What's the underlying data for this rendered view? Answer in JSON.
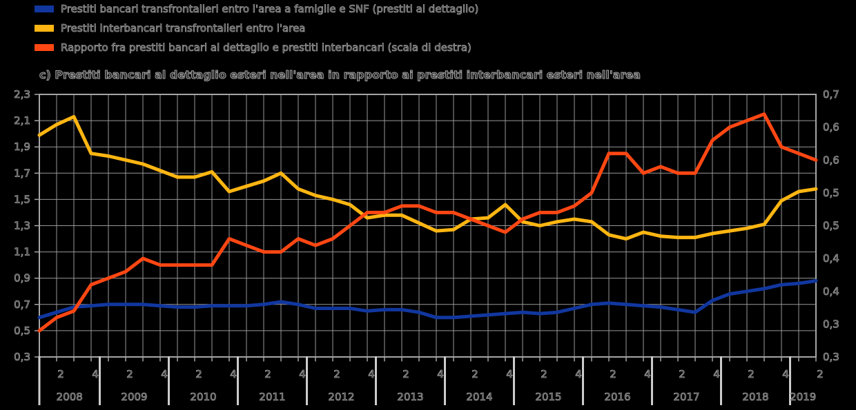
{
  "legend": {
    "items": [
      {
        "label": "Prestiti bancari transfrontalieri entro l'area a famiglie e SNF (prestiti al dettaglio)",
        "color": "#11379F"
      },
      {
        "label": "Prestiti interbancari transfrontalieri entro l'area",
        "color": "#FFB612"
      },
      {
        "label": "Rapporto fra prestiti bancari al dettaglio e prestiti interbancari (scala di destra)",
        "color": "#FF4713"
      }
    ]
  },
  "chart_data": {
    "type": "line",
    "title": "c) Prestiti bancari al dettaglio esteri nell'area in rapporto ai prestiti interbancari esteri nell'area",
    "xlabel": "",
    "ylabel": "",
    "grid": true,
    "legend_position": "top-left",
    "x": [
      "2008Q1",
      "2008Q2",
      "2008Q3",
      "2008Q4",
      "2009Q1",
      "2009Q2",
      "2009Q3",
      "2009Q4",
      "2010Q1",
      "2010Q2",
      "2010Q3",
      "2010Q4",
      "2011Q1",
      "2011Q2",
      "2011Q3",
      "2011Q4",
      "2012Q1",
      "2012Q2",
      "2012Q3",
      "2012Q4",
      "2013Q1",
      "2013Q2",
      "2013Q3",
      "2013Q4",
      "2014Q1",
      "2014Q2",
      "2014Q3",
      "2014Q4",
      "2015Q1",
      "2015Q2",
      "2015Q3",
      "2015Q4",
      "2016Q1",
      "2016Q2",
      "2016Q3",
      "2016Q4",
      "2017Q1",
      "2017Q2",
      "2017Q3",
      "2017Q4",
      "2018Q1",
      "2018Q2",
      "2018Q3",
      "2018Q4",
      "2019Q1",
      "2019Q2"
    ],
    "series": [
      {
        "name": "Prestiti bancari transfrontalieri entro l'area a famiglie e SNF (prestiti al dettaglio)",
        "axis": "left",
        "color": "#11379F",
        "values": [
          0.6,
          0.64,
          0.68,
          0.69,
          0.7,
          0.7,
          0.7,
          0.69,
          0.68,
          0.68,
          0.69,
          0.69,
          0.69,
          0.7,
          0.72,
          0.7,
          0.67,
          0.67,
          0.67,
          0.65,
          0.66,
          0.66,
          0.64,
          0.6,
          0.6,
          0.61,
          0.62,
          0.63,
          0.64,
          0.63,
          0.64,
          0.67,
          0.7,
          0.71,
          0.7,
          0.69,
          0.68,
          0.66,
          0.64,
          0.73,
          0.78,
          0.8,
          0.82,
          0.85,
          0.86,
          0.88
        ]
      },
      {
        "name": "Prestiti interbancari transfrontalieri entro l'area",
        "axis": "left",
        "color": "#FFB612",
        "values": [
          1.99,
          2.07,
          2.13,
          1.85,
          1.83,
          1.8,
          1.77,
          1.72,
          1.67,
          1.67,
          1.71,
          1.56,
          1.6,
          1.64,
          1.7,
          1.58,
          1.53,
          1.5,
          1.46,
          1.36,
          1.38,
          1.38,
          1.32,
          1.26,
          1.27,
          1.35,
          1.36,
          1.46,
          1.33,
          1.3,
          1.33,
          1.35,
          1.33,
          1.23,
          1.2,
          1.25,
          1.22,
          1.21,
          1.21,
          1.24,
          1.26,
          1.28,
          1.31,
          1.49,
          1.56,
          1.58
        ]
      },
      {
        "name": "Rapporto fra prestiti bancari al dettaglio e prestiti interbancari (scala di destra)",
        "axis": "right",
        "color": "#FF4713",
        "values": [
          0.34,
          0.36,
          0.37,
          0.41,
          0.42,
          0.43,
          0.45,
          0.44,
          0.44,
          0.44,
          0.44,
          0.48,
          0.47,
          0.46,
          0.46,
          0.48,
          0.47,
          0.48,
          0.5,
          0.52,
          0.52,
          0.53,
          0.53,
          0.52,
          0.52,
          0.51,
          0.5,
          0.49,
          0.51,
          0.52,
          0.52,
          0.53,
          0.55,
          0.61,
          0.61,
          0.58,
          0.59,
          0.58,
          0.58,
          0.63,
          0.65,
          0.66,
          0.67,
          0.62,
          0.61,
          0.6
        ]
      }
    ],
    "left_axis": {
      "min": 0.3,
      "max": 2.3,
      "ticks": [
        "2,3",
        "2,1",
        "1,9",
        "1,7",
        "1,5",
        "1,3",
        "1,1",
        "0,9",
        "0,7",
        "0,5",
        "0,3"
      ]
    },
    "right_axis": {
      "min": 0.3,
      "max": 0.7,
      "ticks": [
        "0,7",
        "0,6",
        "0,6",
        "0,5",
        "0,5",
        "0,4",
        "0,4",
        "0,3",
        "0,3"
      ]
    },
    "x_axis": {
      "years": [
        {
          "label": "2008",
          "quarters": [
            "2",
            "4"
          ]
        },
        {
          "label": "2009",
          "quarters": [
            "2",
            "4"
          ]
        },
        {
          "label": "2010",
          "quarters": [
            "2",
            "4"
          ]
        },
        {
          "label": "2011",
          "quarters": [
            "2",
            "4"
          ]
        },
        {
          "label": "2012",
          "quarters": [
            "2",
            "4"
          ]
        },
        {
          "label": "2013",
          "quarters": [
            "2",
            "4"
          ]
        },
        {
          "label": "2014",
          "quarters": [
            "2",
            "4"
          ]
        },
        {
          "label": "2015",
          "quarters": [
            "2",
            "4"
          ]
        },
        {
          "label": "2016",
          "quarters": [
            "2",
            "4"
          ]
        },
        {
          "label": "2017",
          "quarters": [
            "2",
            "4"
          ]
        },
        {
          "label": "2018",
          "quarters": [
            "2",
            "4"
          ]
        },
        {
          "label": "2019",
          "quarters": [
            "2"
          ]
        }
      ]
    }
  },
  "colors": {
    "background": "#000000",
    "gridline": "#999999",
    "plot_border": "#a6a6a6",
    "year_separator": "#cccccc",
    "text_outline": "#9c9c9c"
  }
}
